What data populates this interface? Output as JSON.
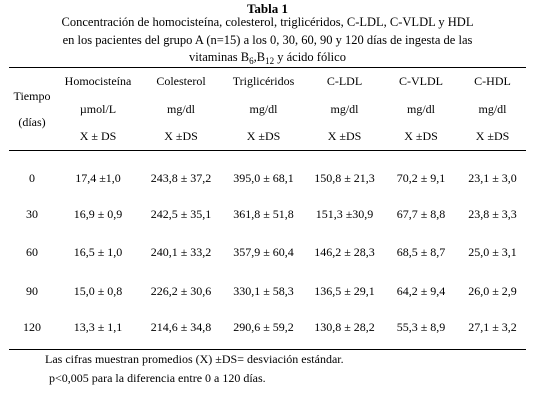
{
  "title": "Tabla  1",
  "caption": {
    "line1": "Concentración de homocisteína, colesterol, triglicéridos, C-LDL, C-VLDL y HDL",
    "line2": "en los pacientes del grupo A (n=15) a los 0, 30, 60, 90 y 120 días de ingesta de las",
    "line3_pre": "vitaminas B",
    "sub1": "6",
    "line3_mid": ",B",
    "sub2": "12",
    "line3_post": " y ácido fólico"
  },
  "table": {
    "time_header": [
      "Tiempo",
      "(días)"
    ],
    "columns": [
      {
        "name": "Homocisteína",
        "unit": "µmol/L",
        "stat": "X ± DS"
      },
      {
        "name": "Colesterol",
        "unit": "mg/dl",
        "stat": "X ±DS"
      },
      {
        "name": "Triglicéridos",
        "unit": "mg/dl",
        "stat": "X ±DS"
      },
      {
        "name": "C-LDL",
        "unit": "mg/dl",
        "stat": "X ±DS"
      },
      {
        "name": "C-VLDL",
        "unit": "mg/dl",
        "stat": "X ±DS"
      },
      {
        "name": "C-HDL",
        "unit": "mg/dl",
        "stat": "X ±DS"
      }
    ],
    "rows": [
      {
        "time": "0",
        "values": [
          "17,4 ±1,0",
          "243,8 ± 37,2",
          "395,0 ± 68,1",
          "150,8 ± 21,3",
          "70,2 ± 9,1",
          "23,1 ± 3,0"
        ]
      },
      {
        "time": "30",
        "values": [
          "16,9 ± 0,9",
          "242,5 ± 35,1",
          "361,8 ± 51,8",
          "151,3 ±30,9",
          "67,7 ± 8,8",
          "23,8 ± 3,3"
        ]
      },
      {
        "time": "60",
        "values": [
          "16,5 ± 1,0",
          "240,1 ± 33,2",
          "357,9 ± 60,4",
          "146,2 ± 28,3",
          "68,5 ± 8,7",
          "25,0 ± 3,1"
        ]
      },
      {
        "time": "90",
        "values": [
          "15,0 ± 0,8",
          "226,2 ± 30,6",
          "330,1 ± 58,3",
          "136,5 ± 29,1",
          "64,2 ± 9,4",
          "26,0 ± 2,9"
        ]
      },
      {
        "time": "120",
        "values": [
          "13,3 ± 1,1",
          "214,6 ± 34,8",
          "290,6 ± 59,2",
          "130,8 ± 28,2",
          "55,3 ± 8,9",
          "27,1 ± 3,2"
        ]
      }
    ]
  },
  "notes": {
    "line1": "Las cifras muestran promedios (X)  ±DS= desviación estándar.",
    "line2": "p<0,005 para la diferencia entre 0 a 120 días."
  }
}
